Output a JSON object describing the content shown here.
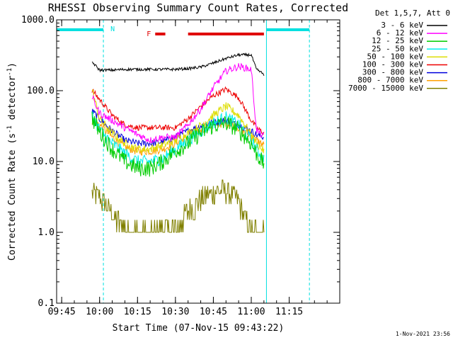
{
  "chart_data": {
    "type": "line",
    "title": "RHESSI Observing Summary Count Rates, Corrected",
    "xlabel": "Start Time (07-Nov-15 09:43:22)",
    "ylabel": "Corrected Count Rate (s⁻¹ detector⁻¹)",
    "ylabel_main": "Corrected Count Rate (s",
    "ylabel_sup1": "-1",
    "ylabel_mid": " detector",
    "ylabel_sup2": "-1",
    "ylabel_end": ")",
    "yscale": "log",
    "ylim": [
      0.1,
      1000
    ],
    "xlim": [
      -17,
      95
    ],
    "x_unit": "minutes after 10:00 UT",
    "y_ticks": [
      {
        "value": 1000,
        "label": "1000.0"
      },
      {
        "value": 100,
        "label": "100.0"
      },
      {
        "value": 10,
        "label": "10.0"
      },
      {
        "value": 1,
        "label": "1.0"
      },
      {
        "value": 0.1,
        "label": "0.1"
      }
    ],
    "x_ticks": [
      {
        "value": -15,
        "label": "09:45"
      },
      {
        "value": 0,
        "label": "10:00"
      },
      {
        "value": 15,
        "label": "10:15"
      },
      {
        "value": 30,
        "label": "10:30"
      },
      {
        "value": 45,
        "label": "10:45"
      },
      {
        "value": 60,
        "label": "11:00"
      },
      {
        "value": 75,
        "label": "11:15"
      }
    ],
    "legend_header": "Det 1,5,7, Att 0",
    "legend_position": "right",
    "timestamp": "1-Nov-2021 23:56",
    "annotations": {
      "night_label": "N",
      "flare_label": "F",
      "night_bars": [
        [
          -17,
          1.5
        ],
        [
          66,
          83
        ]
      ],
      "flare_bars": [
        [
          22,
          26
        ],
        [
          35,
          65
        ]
      ],
      "night_lines": [
        -17,
        1.5,
        66,
        83
      ],
      "night_color": "#00e0e0",
      "flare_color": "#e00000"
    },
    "x": [
      -3,
      0,
      5,
      10,
      15,
      20,
      25,
      30,
      35,
      40,
      45,
      50,
      55,
      60,
      62,
      65
    ],
    "series": [
      {
        "name": "3 - 6 keV",
        "color": "#000000",
        "values": [
          255,
          195,
          195,
          200,
          200,
          200,
          200,
          200,
          205,
          215,
          245,
          285,
          320,
          320,
          200,
          170
        ]
      },
      {
        "name": "6 - 12 keV",
        "color": "#ff00ff",
        "values": [
          82,
          48,
          38,
          30,
          24,
          20,
          22,
          22,
          33,
          55,
          110,
          190,
          220,
          200,
          28,
          22
        ]
      },
      {
        "name": "12 - 25 keV",
        "color": "#00cc00",
        "values": [
          42,
          26,
          15,
          10,
          8,
          8,
          10,
          14,
          18,
          25,
          32,
          35,
          28,
          18,
          13,
          9
        ]
      },
      {
        "name": "25 - 50 keV",
        "color": "#00eeee",
        "values": [
          45,
          28,
          18,
          13,
          10,
          10,
          11,
          15,
          20,
          27,
          35,
          42,
          33,
          20,
          15,
          11
        ]
      },
      {
        "name": "50 - 100 keV",
        "color": "#dddd00",
        "values": [
          105,
          40,
          25,
          18,
          15,
          15,
          17,
          20,
          25,
          32,
          45,
          60,
          45,
          24,
          18,
          14
        ]
      },
      {
        "name": "100 - 300 keV",
        "color": "#ee0000",
        "values": [
          102,
          75,
          45,
          33,
          30,
          30,
          30,
          30,
          40,
          60,
          85,
          105,
          80,
          38,
          30,
          25
        ]
      },
      {
        "name": "300 - 800 keV",
        "color": "#0000dd",
        "values": [
          52,
          40,
          27,
          20,
          18,
          18,
          19,
          22,
          27,
          32,
          36,
          38,
          33,
          27,
          24,
          22
        ]
      },
      {
        "name": "800 - 7000 keV",
        "color": "#ffa000",
        "values": [
          38,
          33,
          22,
          16,
          14,
          14,
          15,
          18,
          22,
          28,
          33,
          35,
          30,
          23,
          20,
          17
        ]
      },
      {
        "name": "7000 - 15000 keV",
        "color": "#808000",
        "values": [
          3.5,
          3.2,
          1.8,
          1.1,
          1.0,
          1.0,
          1.1,
          1.1,
          2.0,
          3.0,
          3.8,
          4.0,
          2.8,
          1.0,
          1.0,
          1.0
        ]
      }
    ]
  }
}
